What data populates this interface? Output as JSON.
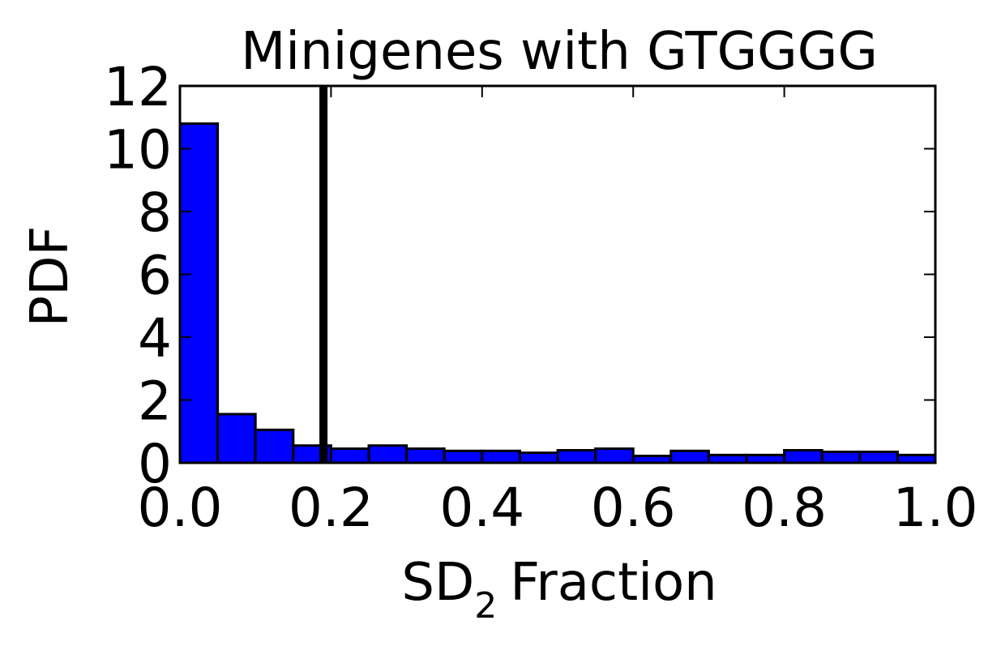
{
  "chart_data": {
    "type": "bar",
    "title": "Minigenes with GTGGGG",
    "xlabel": {
      "main": "SD",
      "subscript": "2",
      "suffix": "Fraction"
    },
    "ylabel": "PDF",
    "xlim": [
      0.0,
      1.0
    ],
    "ylim": [
      0,
      12
    ],
    "xticks": [
      "0.0",
      "0.2",
      "0.4",
      "0.6",
      "0.8",
      "1.0"
    ],
    "yticks": [
      "0",
      "2",
      "4",
      "6",
      "8",
      "10",
      "12"
    ],
    "bin_edges": [
      0.0,
      0.05,
      0.1,
      0.15,
      0.2,
      0.25,
      0.3,
      0.35,
      0.4,
      0.45,
      0.5,
      0.55,
      0.6,
      0.65,
      0.7,
      0.75,
      0.8,
      0.85,
      0.9,
      0.95,
      1.0
    ],
    "values": [
      10.8,
      1.55,
      1.05,
      0.55,
      0.45,
      0.55,
      0.45,
      0.38,
      0.38,
      0.32,
      0.4,
      0.45,
      0.22,
      0.38,
      0.25,
      0.25,
      0.4,
      0.35,
      0.35,
      0.25
    ],
    "bar_color": "#0000ff",
    "edge_color": "#000000",
    "vline": {
      "x": 0.19,
      "color": "#000000"
    },
    "grid": false,
    "legend": "none"
  }
}
